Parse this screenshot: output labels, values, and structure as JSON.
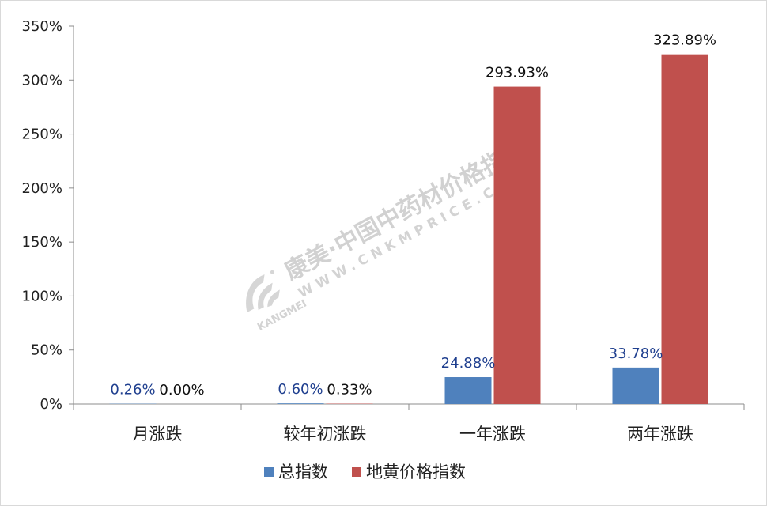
{
  "chart_data": {
    "type": "bar",
    "categories": [
      "月涨跌",
      "较年初涨跌",
      "一年涨跌",
      "两年涨跌"
    ],
    "series": [
      {
        "name": "总指数",
        "color": "#4f81bd",
        "values": [
          0.26,
          0.6,
          24.88,
          33.78
        ],
        "labels": [
          "0.26%",
          "0.60%",
          "24.88%",
          "33.78%"
        ],
        "label_color": "#1f3f8f"
      },
      {
        "name": "地黄价格指数",
        "color": "#c0504d",
        "values": [
          0.0,
          0.33,
          293.93,
          323.89
        ],
        "labels": [
          "0.00%",
          "0.33%",
          "293.93%",
          "323.89%"
        ],
        "label_color": "#111111"
      }
    ],
    "ylim": [
      0,
      350
    ],
    "yticks": [
      0,
      50,
      100,
      150,
      200,
      250,
      300,
      350
    ],
    "ytick_labels": [
      "0%",
      "50%",
      "100%",
      "150%",
      "200%",
      "250%",
      "300%",
      "350%"
    ],
    "grid": false,
    "legend_position": "bottom"
  },
  "watermark": {
    "cn": "康美·中国中药材价格指数",
    "en": "WWW.CNKMPRICE.COM",
    "brand": "KANGMEI"
  }
}
